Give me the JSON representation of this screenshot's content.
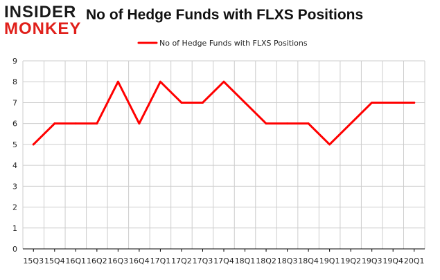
{
  "logo": {
    "line1": "INSIDER",
    "line2": "MONKEY"
  },
  "colors": {
    "series": "#ff0000",
    "grid": "#cccccc",
    "axis": "#000000"
  },
  "chart_data": {
    "type": "line",
    "title": "No of Hedge Funds with FLXS Positions",
    "xlabel": "",
    "ylabel": "",
    "legend_position": "top-center",
    "grid": true,
    "ylim": [
      0,
      9
    ],
    "yticks": [
      0,
      1,
      2,
      3,
      4,
      5,
      6,
      7,
      8,
      9
    ],
    "categories": [
      "15Q3",
      "15Q4",
      "16Q1",
      "16Q2",
      "16Q3",
      "16Q4",
      "17Q1",
      "17Q2",
      "17Q3",
      "17Q4",
      "18Q1",
      "18Q2",
      "18Q3",
      "18Q4",
      "19Q1",
      "19Q2",
      "19Q3",
      "19Q4",
      "20Q1"
    ],
    "series": [
      {
        "name": "No of Hedge Funds with FLXS Positions",
        "values": [
          5,
          6,
          6,
          6,
          8,
          6,
          8,
          7,
          7,
          8,
          7,
          6,
          6,
          6,
          5,
          6,
          7,
          7,
          7
        ]
      }
    ]
  }
}
